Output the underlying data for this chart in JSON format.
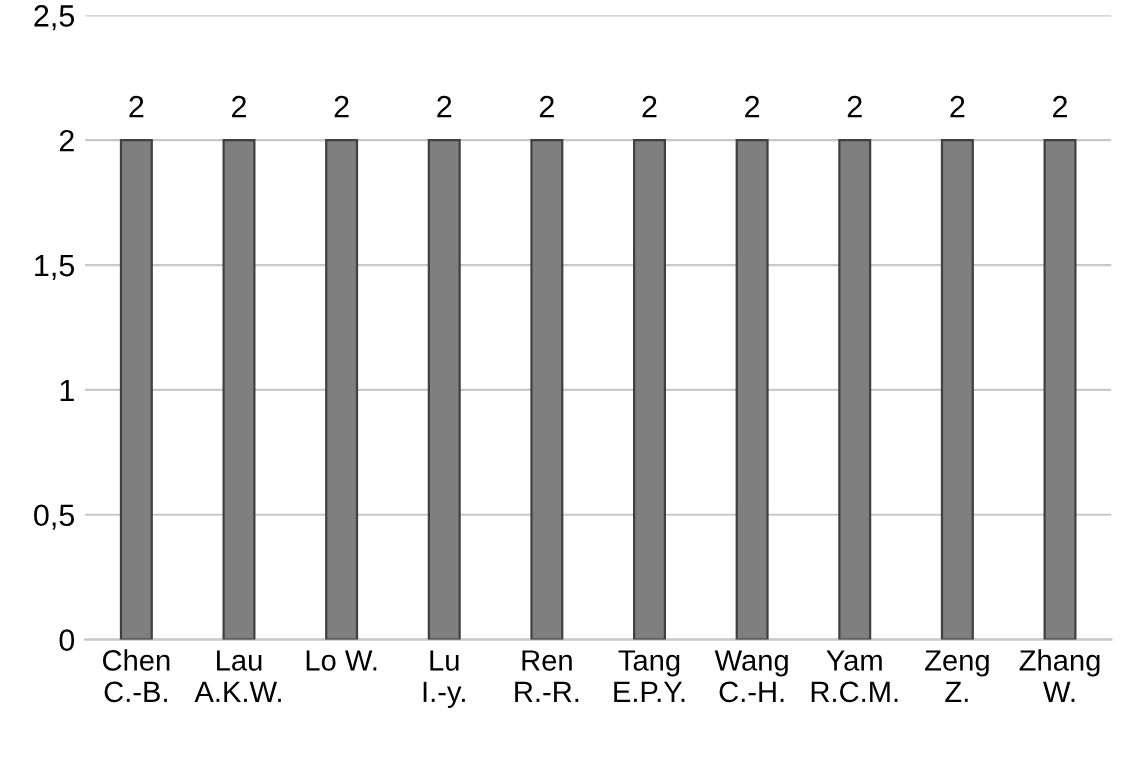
{
  "chart_data": {
    "type": "bar",
    "categories": [
      "Chen C.-B.",
      "Lau A.K.W.",
      "Lo W.",
      "Lu I.-y.",
      "Ren R.-R.",
      "Tang E.P.Y.",
      "Wang C.-H.",
      "Yam R.C.M.",
      "Zeng Z.",
      "Zhang W."
    ],
    "values": [
      2,
      2,
      2,
      2,
      2,
      2,
      2,
      2,
      2,
      2
    ],
    "color": "#7f7f7f",
    "ylim": [
      0,
      2.5
    ],
    "yticks": [
      0,
      {
        "value": 0.5,
        "label": "0,5"
      },
      1,
      {
        "value": 1.5,
        "label": "1,5"
      },
      2,
      {
        "value": 2.5,
        "label": "2,5"
      }
    ],
    "grid": "y",
    "data_labels": true,
    "legend": false
  }
}
